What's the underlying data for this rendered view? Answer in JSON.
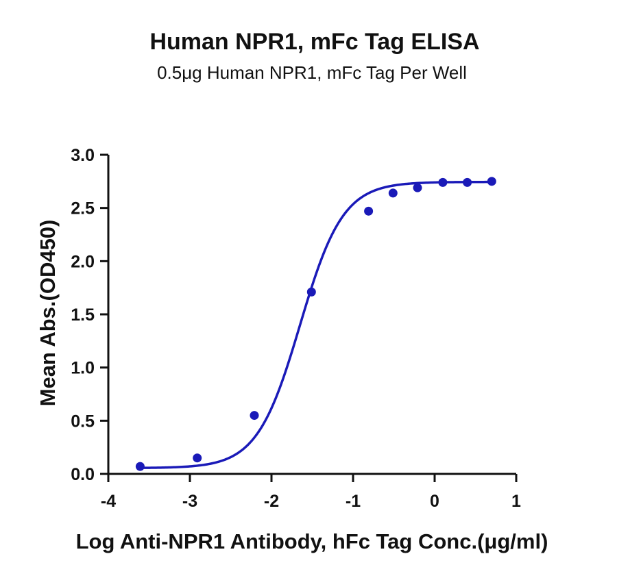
{
  "chart_data": {
    "type": "scatter",
    "title": "Human NPR1, mFc Tag ELISA",
    "subtitle": "0.5μg Human NPR1, mFc Tag Per Well",
    "xlabel": "Log Anti-NPR1 Antibody, hFc Tag Conc.(μg/ml)",
    "ylabel": "Mean Abs.(OD450)",
    "xlim": [
      -4,
      1
    ],
    "ylim": [
      0,
      3
    ],
    "x_ticks": [
      "-4",
      "-3",
      "-2",
      "-1",
      "0",
      "1"
    ],
    "y_ticks": [
      "0.0",
      "0.5",
      "1.0",
      "1.5",
      "2.0",
      "2.5",
      "3.0"
    ],
    "grid": false,
    "color": "#1a1ab8",
    "series": [
      {
        "x": [
          -3.61,
          -2.91,
          -2.21,
          -1.51,
          -0.81,
          -0.51,
          -0.21,
          0.1,
          0.4,
          0.7
        ],
        "y": [
          0.07,
          0.15,
          0.55,
          1.71,
          2.47,
          2.64,
          2.69,
          2.74,
          2.74,
          2.75
        ]
      }
    ],
    "fit": {
      "type": "4PL sigmoid curve",
      "x_range": [
        -3.61,
        0.7
      ]
    }
  }
}
